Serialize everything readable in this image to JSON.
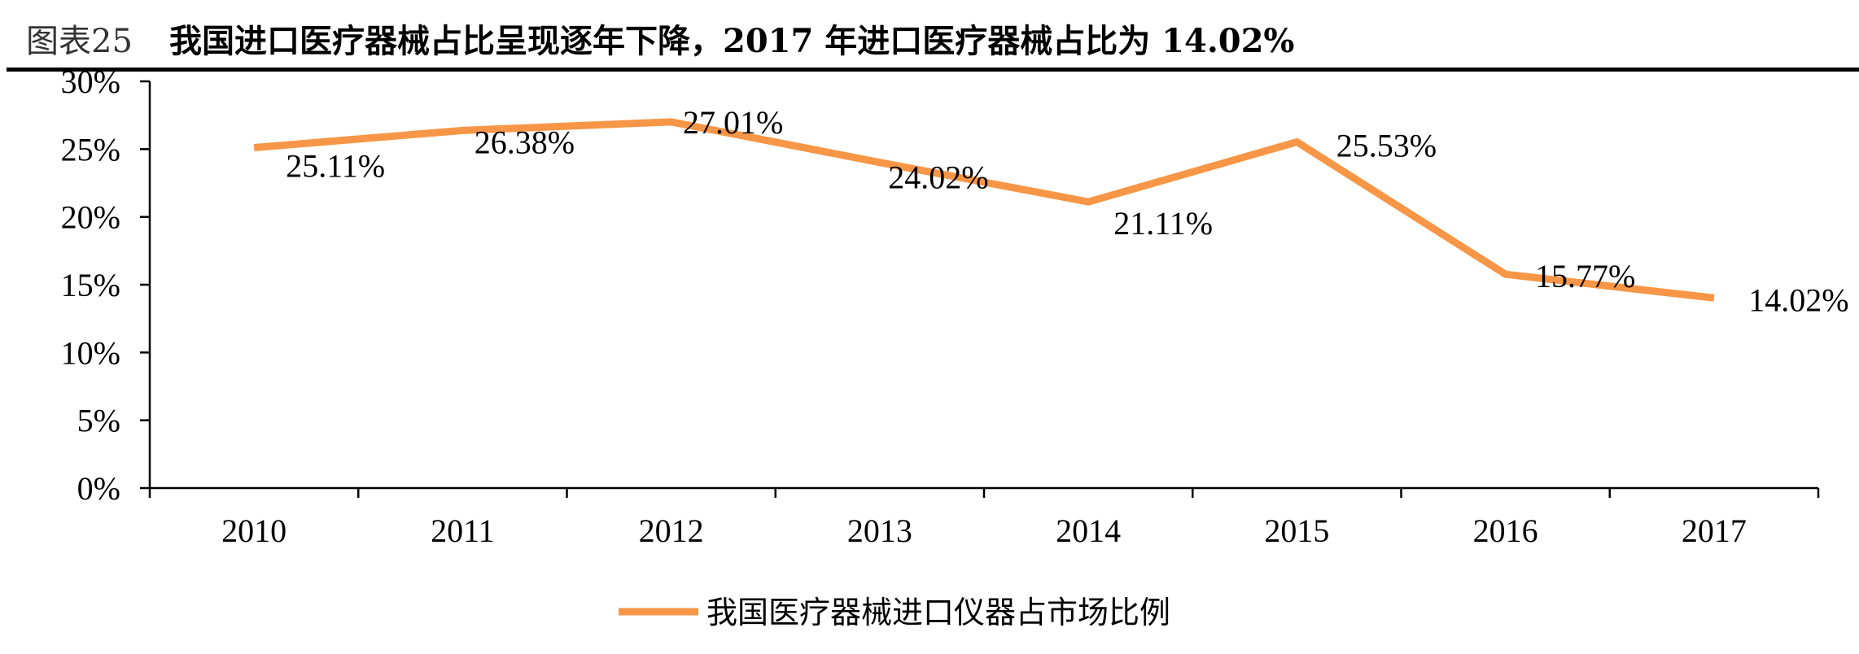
{
  "title": {
    "prefix": "图表25",
    "text": "我国进口医疗器械占比呈现逐年下降，2017 年进口医疗器械占比为 14.02%"
  },
  "chart_data": {
    "type": "line",
    "categories": [
      "2010",
      "2011",
      "2012",
      "2013",
      "2014",
      "2015",
      "2016",
      "2017"
    ],
    "series": [
      {
        "name": "我国医疗器械进口仪器占市场比例",
        "values": [
          25.11,
          26.38,
          27.01,
          24.02,
          21.11,
          25.53,
          15.77,
          14.02
        ],
        "labels": [
          "25.11%",
          "26.38%",
          "27.01%",
          "24.02%",
          "21.11%",
          "25.53%",
          "15.77%",
          "14.02%"
        ],
        "color": "#F79646"
      }
    ],
    "yticks": [
      "0%",
      "5%",
      "10%",
      "15%",
      "20%",
      "25%",
      "30%"
    ],
    "ytick_values": [
      0,
      5,
      10,
      15,
      20,
      25,
      30
    ],
    "ylim": [
      0,
      30
    ],
    "grid": false,
    "legend": "bottom-center"
  }
}
